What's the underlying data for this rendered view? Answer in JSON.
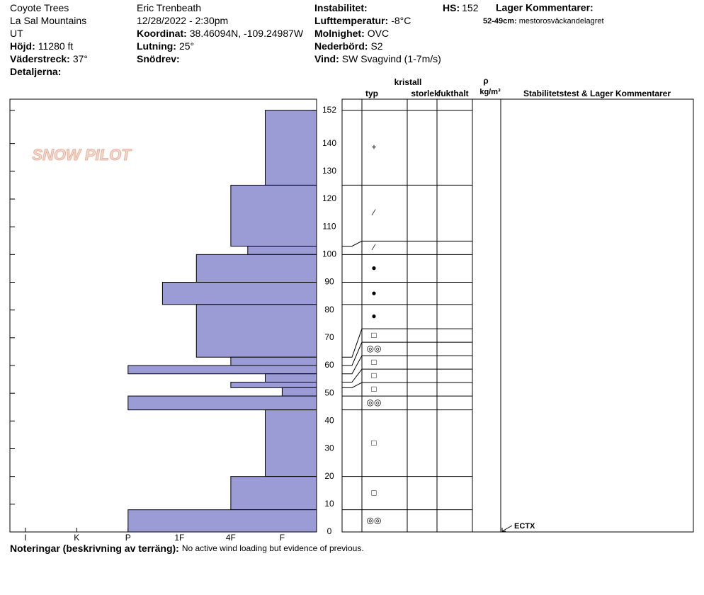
{
  "header": {
    "columns": [
      [
        {
          "value": "Coyote Trees"
        },
        {
          "value": "La Sal Mountains"
        },
        {
          "value": "UT"
        },
        {
          "label": "Höjd:",
          "value": "11280 ft"
        },
        {
          "label": "Väderstreck:",
          "value": "37°"
        },
        {
          "label": "Detaljerna:"
        }
      ],
      [
        {
          "value": "Eric Trenbeath"
        },
        {
          "value": "12/28/2022 - 2:30pm"
        },
        {
          "label": "Koordinat:",
          "value": "38.46094N, -109.24987W"
        },
        {
          "label": "Lutning:",
          "value": "25°"
        },
        {
          "label": "Snödrev:"
        }
      ],
      [
        {
          "label": "Instabilitet:"
        },
        {
          "label": "Lufttemperatur:",
          "value": "-8°C"
        },
        {
          "label": "Molnighet:",
          "value": "OVC"
        },
        {
          "label": "Nederbörd:",
          "value": "S2"
        },
        {
          "label": "Vind:",
          "value": "SW Svagvind (1-7m/s)"
        }
      ]
    ],
    "hs": {
      "label": "HS:",
      "value": 152
    },
    "layer_comments": {
      "title": "Lager Kommentarer:",
      "items": [
        {
          "label": "52-49cm:",
          "value": "mestorosväckandelagret"
        }
      ]
    }
  },
  "logo": "SNOW PILOT",
  "table_header": {
    "typ": "typ",
    "kristall": "kristall",
    "storlek": "storlek",
    "fukthalt": "fukthalt",
    "rho": "ρ",
    "density_unit": "kg/m³",
    "comments": "Stabilitetstest & Lager Kommentarer"
  },
  "chart_data": {
    "type": "snow_profile",
    "layer_edges": [
      152,
      125,
      103,
      100,
      90,
      82,
      63,
      60,
      57,
      54,
      52,
      49,
      44,
      20,
      8,
      0
    ],
    "values": [
      1.33,
      2,
      1.67,
      2.67,
      3.33,
      2.67,
      2,
      4,
      1.33,
      2,
      1,
      4,
      1.33,
      2,
      4
    ],
    "grain_types": [
      "+",
      "⁄",
      "⁄",
      "●",
      "●",
      "●",
      "□",
      "◎◎",
      "□",
      "□",
      "□",
      "◎◎",
      "□",
      "□",
      "◎◎"
    ],
    "color": "#9b9bd6",
    "ylim": [
      0,
      156
    ],
    "yticks": [
      0,
      10,
      20,
      30,
      40,
      50,
      60,
      70,
      80,
      90,
      100,
      110,
      120,
      130,
      140,
      152
    ],
    "xlim": [
      6.3,
      0.33
    ],
    "xticks": [
      {
        "value": 6,
        "label": "I"
      },
      {
        "value": 5,
        "label": "K"
      },
      {
        "value": 4,
        "label": "P"
      },
      {
        "value": 3,
        "label": "1F"
      },
      {
        "value": 2,
        "label": "4F"
      },
      {
        "value": 1,
        "label": "F"
      }
    ],
    "tests": [
      {
        "label": "ECTX",
        "depth": 0
      }
    ]
  },
  "notes": {
    "label": "Noteringar (beskrivning av terräng):",
    "value": "No active wind loading but evidence of previous."
  }
}
